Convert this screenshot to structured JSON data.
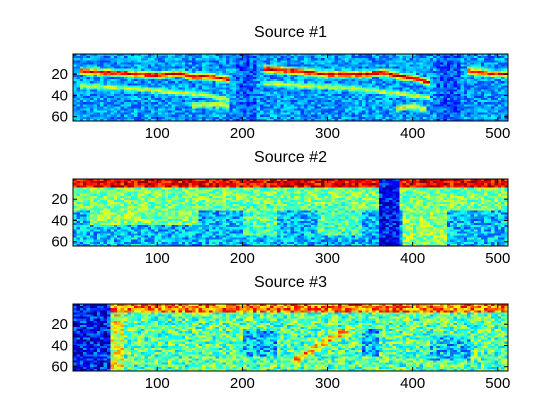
{
  "figure": {
    "background": "#ffffff",
    "colormap": "jet",
    "colormap_stops": [
      "#00008f",
      "#0000ff",
      "#00ffff",
      "#ffff00",
      "#ff0000",
      "#800000"
    ]
  },
  "chart_data": [
    {
      "type": "heatmap",
      "title": "Source #1",
      "xlabel": "",
      "ylabel": "",
      "xlim": [
        1,
        512
      ],
      "ylim": [
        64,
        1
      ],
      "x_ticks": [
        100,
        200,
        300,
        400,
        500
      ],
      "y_ticks": [
        20,
        40,
        60
      ],
      "background_level": 0.26,
      "noise": 0.1,
      "features": [
        {
          "kind": "ridge",
          "x": [
            8,
            30,
            60,
            100,
            125,
            140,
            160,
            185
          ],
          "y": [
            17,
            18,
            19,
            21,
            19,
            22,
            22,
            25
          ],
          "width": 2.0,
          "level": 0.9
        },
        {
          "kind": "ridge",
          "x": [
            225,
            260,
            300,
            345,
            365,
            385,
            405,
            420
          ],
          "y": [
            15,
            17,
            20,
            20,
            18,
            22,
            24,
            28
          ],
          "width": 2.0,
          "level": 0.92
        },
        {
          "kind": "ridge",
          "x": [
            465,
            490,
            512
          ],
          "y": [
            17,
            19,
            20
          ],
          "width": 2.0,
          "level": 0.85
        },
        {
          "kind": "ridge",
          "x": [
            8,
            60,
            120,
            160,
            185
          ],
          "y": [
            31,
            33,
            37,
            40,
            44
          ],
          "width": 1.6,
          "level": 0.58
        },
        {
          "kind": "ridge",
          "x": [
            225,
            280,
            340,
            380,
            420
          ],
          "y": [
            29,
            31,
            34,
            38,
            42
          ],
          "width": 1.6,
          "level": 0.58
        },
        {
          "kind": "ridge",
          "x": [
            140,
            165,
            185
          ],
          "y": [
            50,
            48,
            50
          ],
          "width": 1.8,
          "level": 0.6
        },
        {
          "kind": "ridge",
          "x": [
            380,
            400,
            415
          ],
          "y": [
            52,
            50,
            53
          ],
          "width": 1.8,
          "level": 0.6
        },
        {
          "kind": "gap",
          "x": [
            192,
            218
          ],
          "level": 0.2
        },
        {
          "kind": "gap",
          "x": [
            428,
            458
          ],
          "level": 0.2
        }
      ]
    },
    {
      "type": "heatmap",
      "title": "Source #2",
      "xlabel": "",
      "ylabel": "",
      "xlim": [
        1,
        512
      ],
      "ylim": [
        64,
        1
      ],
      "x_ticks": [
        100,
        200,
        300,
        400,
        500
      ],
      "y_ticks": [
        20,
        40,
        60
      ],
      "background_level": 0.3,
      "noise": 0.13,
      "features": [
        {
          "kind": "band",
          "y": [
            1,
            9
          ],
          "level": 0.88
        },
        {
          "kind": "band",
          "y": [
            9,
            30
          ],
          "level": 0.48
        },
        {
          "kind": "band",
          "y": [
            30,
            64
          ],
          "level": 0.26
        },
        {
          "kind": "region",
          "x": [
            20,
            150
          ],
          "y": [
            30,
            45
          ],
          "level": 0.5
        },
        {
          "kind": "region",
          "x": [
            200,
            240
          ],
          "y": [
            25,
            55
          ],
          "level": 0.45
        },
        {
          "kind": "region",
          "x": [
            290,
            340
          ],
          "y": [
            25,
            55
          ],
          "level": 0.44
        },
        {
          "kind": "region",
          "x": [
            390,
            440
          ],
          "y": [
            20,
            64
          ],
          "level": 0.5
        },
        {
          "kind": "gap",
          "x": [
            360,
            385
          ],
          "level": 0.12
        }
      ]
    },
    {
      "type": "heatmap",
      "title": "Source #3",
      "xlabel": "",
      "ylabel": "",
      "xlim": [
        1,
        512
      ],
      "ylim": [
        64,
        1
      ],
      "x_ticks": [
        100,
        200,
        300,
        400,
        500
      ],
      "y_ticks": [
        20,
        40,
        60
      ],
      "background_level": 0.42,
      "noise": 0.16,
      "features": [
        {
          "kind": "band",
          "y": [
            1,
            8
          ],
          "level": 0.75
        },
        {
          "kind": "band",
          "y": [
            8,
            64
          ],
          "level": 0.45
        },
        {
          "kind": "region",
          "x": [
            45,
            60
          ],
          "y": [
            10,
            64
          ],
          "level": 0.6
        },
        {
          "kind": "region",
          "x": [
            200,
            240
          ],
          "y": [
            25,
            50
          ],
          "level": 0.3
        },
        {
          "kind": "region",
          "x": [
            340,
            360
          ],
          "y": [
            25,
            50
          ],
          "level": 0.3
        },
        {
          "kind": "region",
          "x": [
            420,
            470
          ],
          "y": [
            30,
            55
          ],
          "level": 0.32
        },
        {
          "kind": "ridge",
          "x": [
            260,
            280,
            300,
            325
          ],
          "y": [
            55,
            45,
            35,
            25
          ],
          "width": 3.0,
          "level": 0.7
        },
        {
          "kind": "gap",
          "x": [
            1,
            45
          ],
          "level": 0.12
        }
      ]
    }
  ]
}
